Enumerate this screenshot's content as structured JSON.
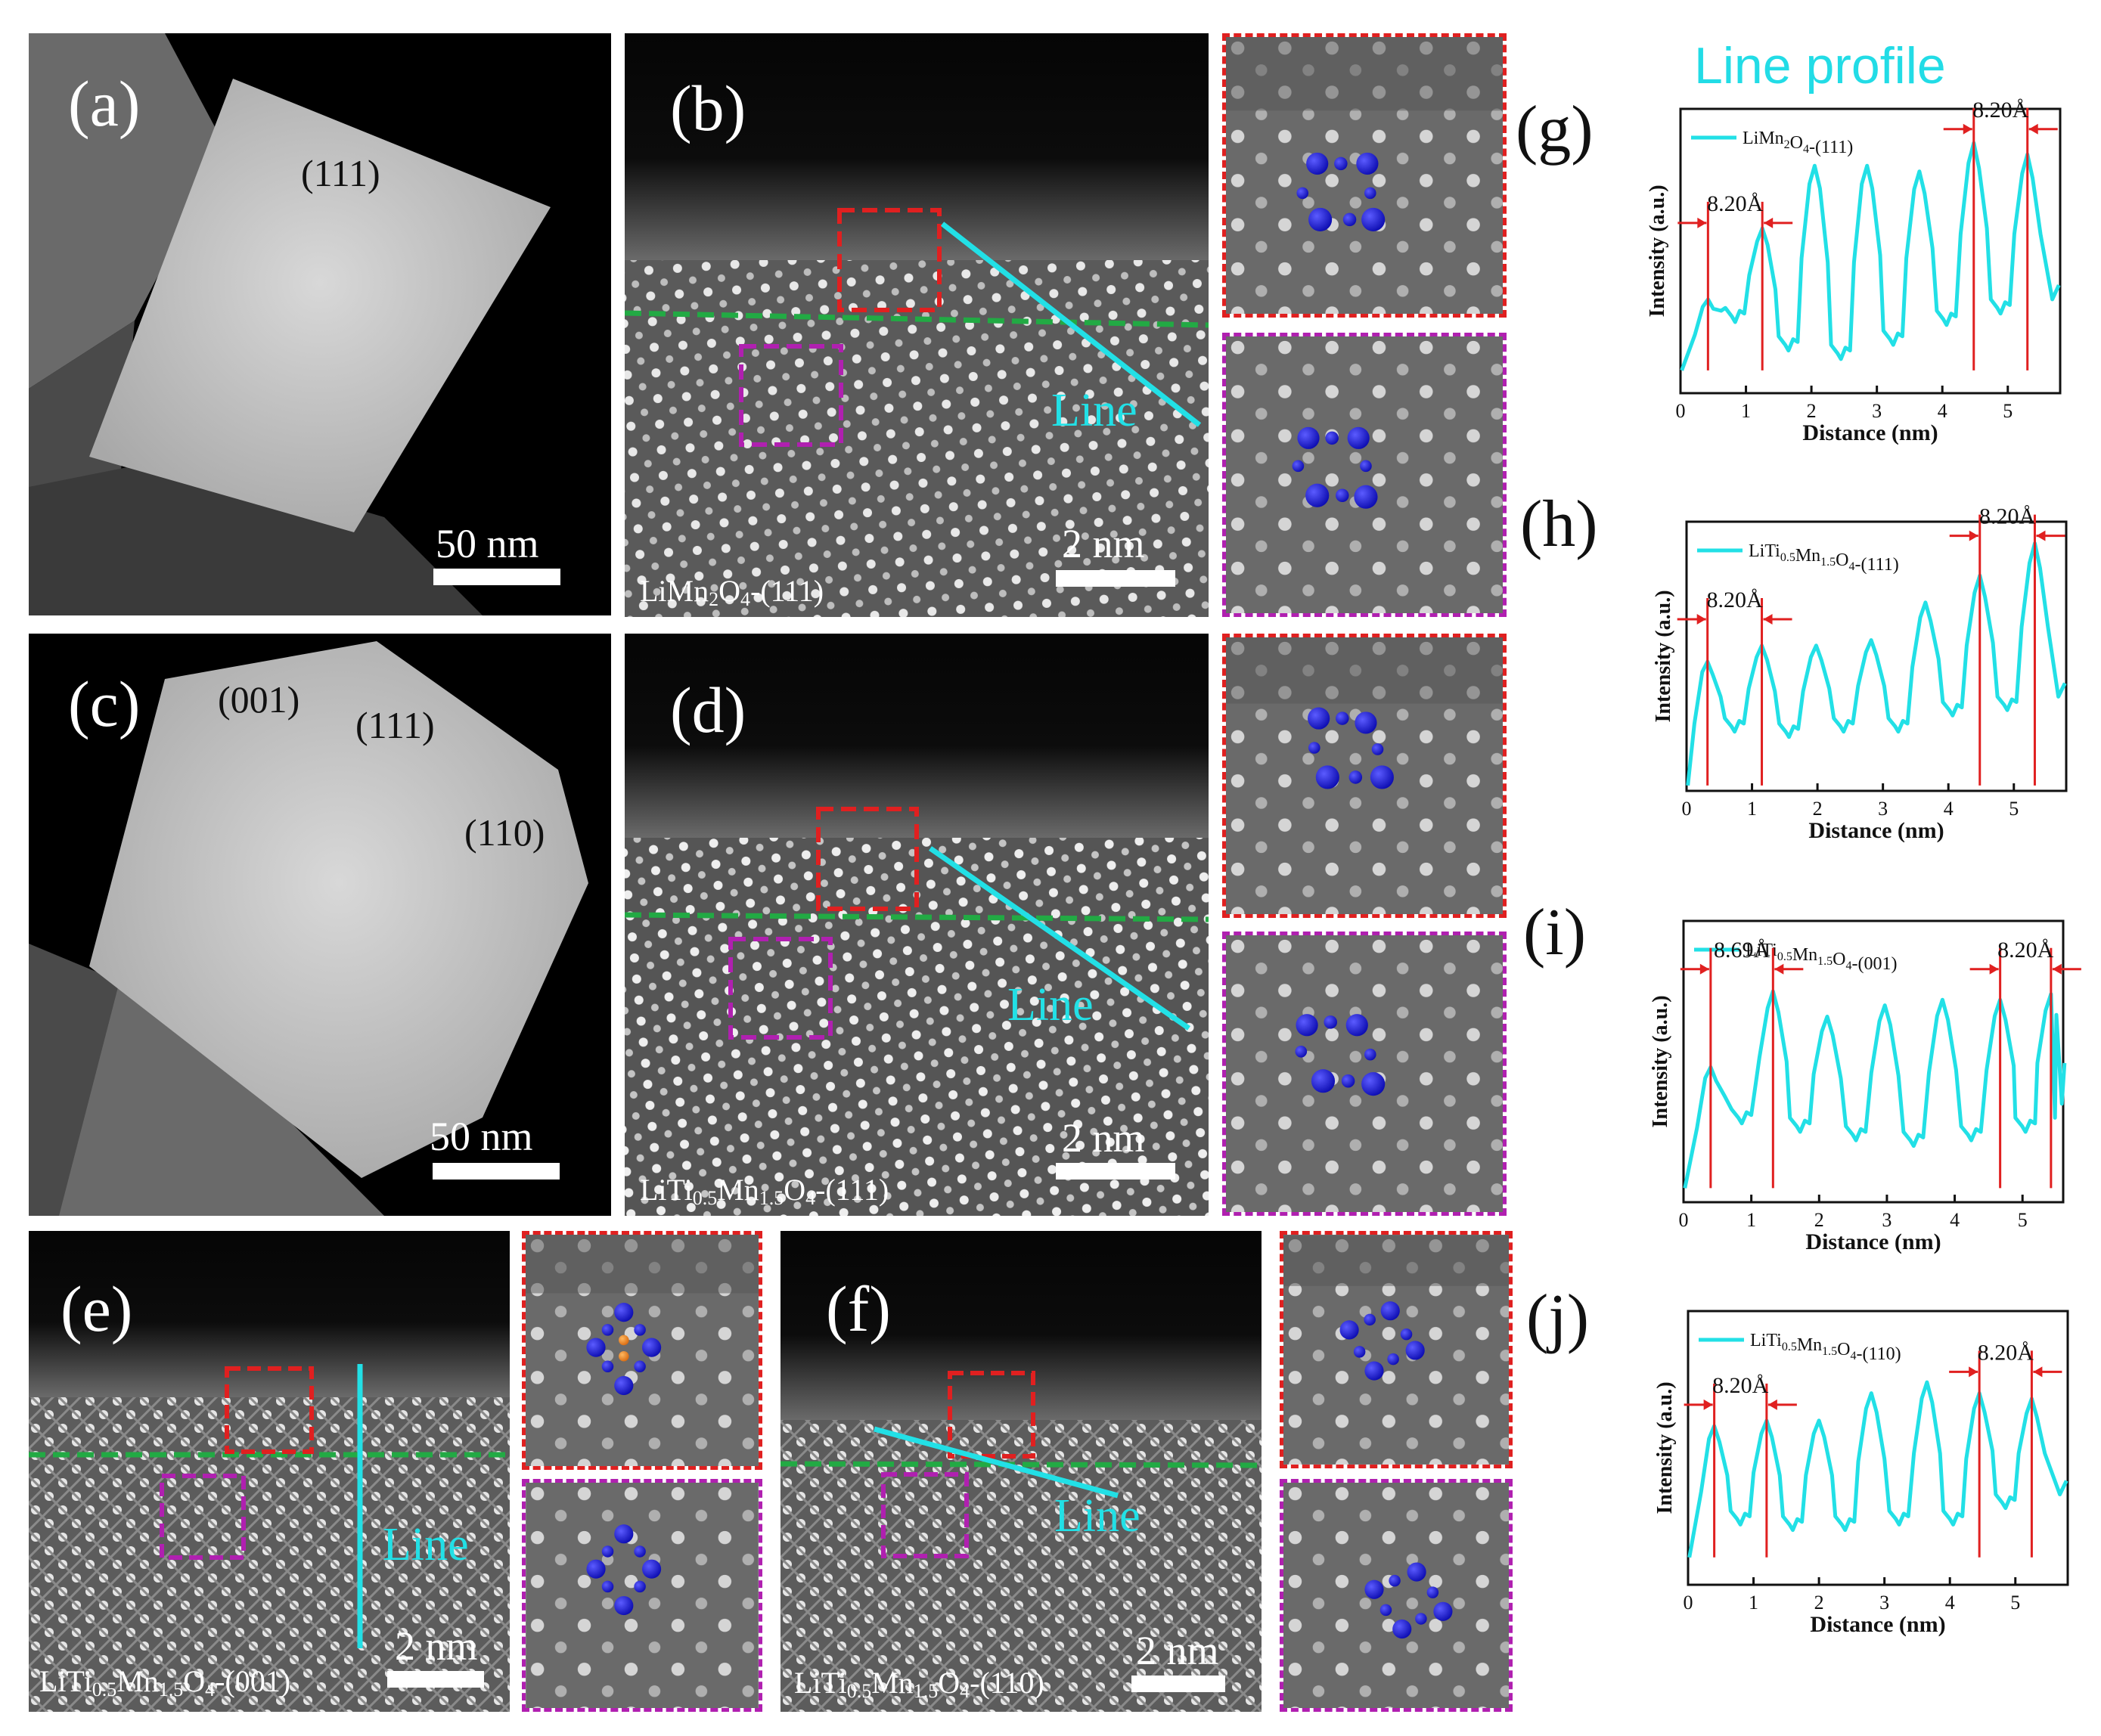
{
  "figure_title": "Line profile",
  "panels": {
    "a": {
      "label": "(a)",
      "facets": [
        "(111)"
      ],
      "scale": "50 nm"
    },
    "b": {
      "label": "(b)",
      "sample_base": "LiMn",
      "sample_sub1": "2",
      "sample_mid": "O",
      "sample_sub2": "4",
      "sample_tail": "-(111)",
      "scale": "2 nm",
      "line_word": "Line"
    },
    "c": {
      "label": "(c)",
      "facets": [
        "(001)",
        "(111)",
        "(110)"
      ],
      "scale": "50 nm"
    },
    "d": {
      "label": "(d)",
      "sample_base": "LiTi",
      "sample_sub1": "0.5",
      "sample_mid": "Mn",
      "sample_sub2": "1.5",
      "sample_mid2": "O",
      "sample_sub3": "4",
      "sample_tail": "-(111)",
      "scale": "2 nm",
      "line_word": "Line"
    },
    "e": {
      "label": "(e)",
      "sample_base": "LiTi",
      "sample_sub1": "0.5",
      "sample_mid": "Mn",
      "sample_sub2": "1.5",
      "sample_mid2": "O",
      "sample_sub3": "4",
      "sample_tail": "-(001)",
      "scale": "2 nm",
      "line_word": "Line"
    },
    "f": {
      "label": "(f)",
      "sample_base": "LiTi",
      "sample_sub1": "0.5",
      "sample_mid": "Mn",
      "sample_sub2": "1.5",
      "sample_mid2": "O",
      "sample_sub3": "4",
      "sample_tail": "-(110)",
      "scale": "2 nm",
      "line_word": "Line"
    }
  },
  "colors": {
    "cyan": "#22e0e6",
    "red_box": "#e02020",
    "magenta_box": "#b020b0",
    "green_interface": "#22aa44",
    "atom_blue": "#1a1adc",
    "atom_orange": "#f08a20"
  },
  "chart_data": [
    {
      "type": "line",
      "label": "(g)",
      "legend": "LiMn2O4-(111)",
      "legend_base": "LiMn",
      "legend_sub1": "2",
      "legend_mid": "O",
      "legend_sub2": "4",
      "legend_tail": "-(111)",
      "xlabel": "Distance (nm)",
      "ylabel": "Intensity (a.u.)",
      "xlim": [
        0,
        5.8
      ],
      "ylim": [
        0,
        1
      ],
      "xticks": [
        "0",
        "1",
        "2",
        "3",
        "4",
        "5"
      ],
      "peaks_x": [
        0.42,
        1.25,
        2.05,
        2.85,
        3.65,
        4.48,
        5.3
      ],
      "peaks_y": [
        0.33,
        0.58,
        0.8,
        0.8,
        0.78,
        0.88,
        0.84
      ],
      "valleys_y": [
        0.08,
        0.25,
        0.15,
        0.12,
        0.17,
        0.24,
        0.28
      ],
      "annotations": [
        {
          "text": "8.20Å",
          "x1": 0.42,
          "x2": 1.25,
          "y": 0.62
        },
        {
          "text": "8.20Å",
          "x1": 4.48,
          "x2": 5.3,
          "y": 0.95
        }
      ]
    },
    {
      "type": "line",
      "label": "(h)",
      "legend": "LiTi0.5Mn1.5O4-(111)",
      "legend_base": "LiTi",
      "legend_sub1": "0.5",
      "legend_mid": "Mn",
      "legend_sub2": "1.5",
      "legend_mid2": "O",
      "legend_sub3": "4",
      "legend_tail": "-(111)",
      "xlabel": "Distance (nm)",
      "ylabel": "Intensity (a.u.)",
      "xlim": [
        0,
        5.8
      ],
      "ylim": [
        0,
        1
      ],
      "xticks": [
        "0",
        "1",
        "2",
        "3",
        "4",
        "5"
      ],
      "peaks_x": [
        0.32,
        1.15,
        1.98,
        2.82,
        3.65,
        4.48,
        5.32
      ],
      "peaks_y": [
        0.48,
        0.54,
        0.54,
        0.56,
        0.7,
        0.8,
        0.92
      ],
      "valleys_y": [
        0.02,
        0.22,
        0.2,
        0.22,
        0.22,
        0.28,
        0.3
      ],
      "annotations": [
        {
          "text": "8.20Å",
          "x1": 0.32,
          "x2": 1.15,
          "y": 0.66
        },
        {
          "text": "8.20Å",
          "x1": 4.48,
          "x2": 5.32,
          "y": 0.97
        }
      ]
    },
    {
      "type": "line",
      "label": "(i)",
      "legend": "LiTi0.5Mn1.5O4-(001)",
      "legend_base": "LiTi",
      "legend_sub1": "0.5",
      "legend_mid": "Mn",
      "legend_sub2": "1.5",
      "legend_mid2": "O",
      "legend_sub3": "4",
      "legend_tail": "-(001)",
      "xlabel": "Distance (nm)",
      "ylabel": "Intensity (a.u.)",
      "xlim": [
        0,
        5.6
      ],
      "ylim": [
        0,
        1
      ],
      "xticks": [
        "0",
        "1",
        "2",
        "3",
        "4",
        "5"
      ],
      "peaks_x": [
        0.4,
        1.32,
        2.12,
        2.97,
        3.82,
        4.67,
        5.42
      ],
      "peaks_y": [
        0.48,
        0.75,
        0.66,
        0.7,
        0.72,
        0.72,
        0.74
      ],
      "valleys_y": [
        0.05,
        0.28,
        0.25,
        0.22,
        0.2,
        0.22,
        0.25
      ],
      "annotations": [
        {
          "text": "8.69Å",
          "x1": 0.4,
          "x2": 1.32,
          "y": 0.85
        },
        {
          "text": "8.20Å",
          "x1": 4.67,
          "x2": 5.42,
          "y": 0.85
        }
      ]
    },
    {
      "type": "line",
      "label": "(j)",
      "legend": "LiTi0.5Mn1.5O4-(110)",
      "legend_base": "LiTi",
      "legend_sub1": "0.5",
      "legend_mid": "Mn",
      "legend_sub2": "1.5",
      "legend_mid2": "O",
      "legend_sub3": "4",
      "legend_tail": "-(110)",
      "xlabel": "Distance (nm)",
      "ylabel": "Intensity (a.u.)",
      "xlim": [
        0,
        5.8
      ],
      "ylim": [
        0,
        1
      ],
      "xticks": [
        "0",
        "1",
        "2",
        "3",
        "4",
        "5"
      ],
      "peaks_x": [
        0.4,
        1.2,
        2.0,
        2.8,
        3.65,
        4.45,
        5.25
      ],
      "peaks_y": [
        0.58,
        0.6,
        0.6,
        0.7,
        0.74,
        0.7,
        0.68
      ],
      "valleys_y": [
        0.1,
        0.22,
        0.2,
        0.2,
        0.22,
        0.22,
        0.28
      ],
      "annotations": [
        {
          "text": "8.20Å",
          "x1": 0.4,
          "x2": 1.2,
          "y": 0.68
        },
        {
          "text": "8.20Å",
          "x1": 4.45,
          "x2": 5.25,
          "y": 0.8
        }
      ]
    }
  ]
}
